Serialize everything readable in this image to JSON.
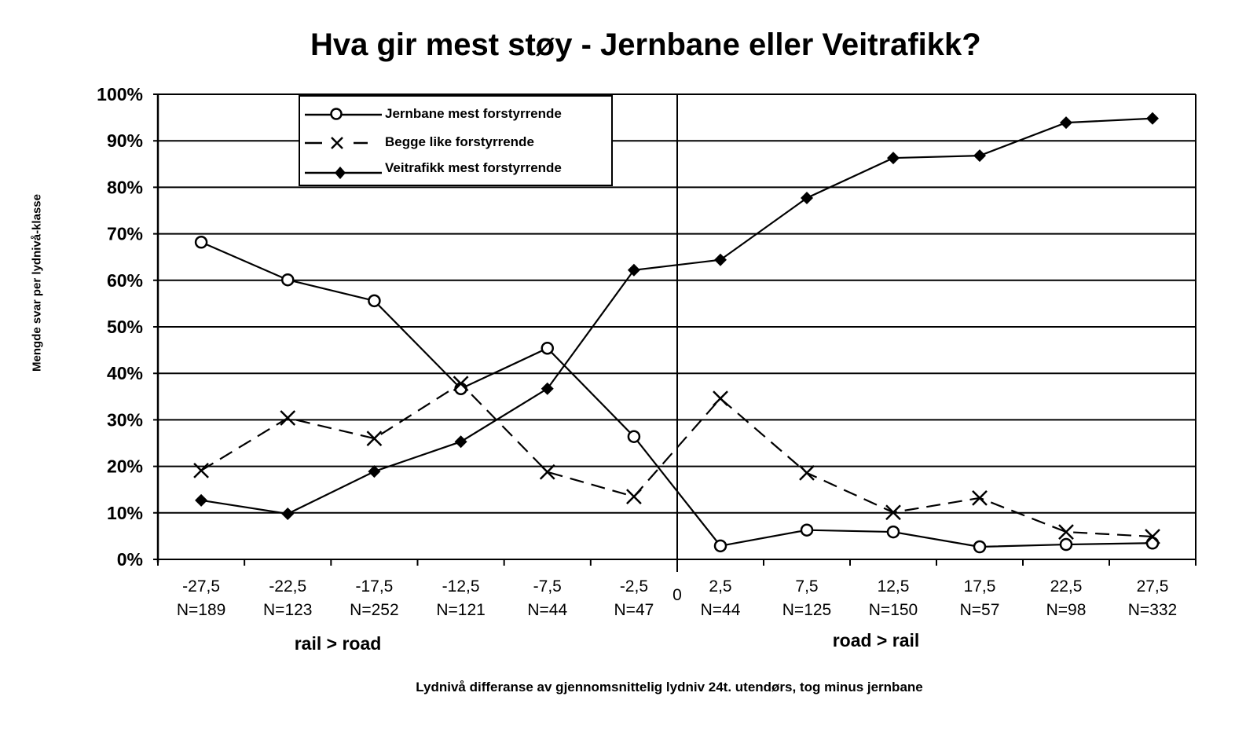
{
  "chart_data": {
    "type": "line",
    "title": "Hva gir mest støy - Jernbane eller Veitrafikk?",
    "xlabel": "Lydnivå differanse av gjennomsnittelig lydniv 24t. utendørs, tog minus jernbane",
    "ylabel": "Mengde svar per lydnivå-klasse",
    "ylim": [
      0,
      100
    ],
    "y_ticks": [
      "0%",
      "10%",
      "20%",
      "30%",
      "40%",
      "50%",
      "60%",
      "70%",
      "80%",
      "90%",
      "100%"
    ],
    "categories": [
      "-27,5",
      "-22,5",
      "-17,5",
      "-12,5",
      "-7,5",
      "-2,5",
      "2,5",
      "7,5",
      "12,5",
      "17,5",
      "22,5",
      "27,5"
    ],
    "n_labels": [
      "N=189",
      "N=123",
      "N=252",
      "N=121",
      "N=44",
      "N=47",
      "N=44",
      "N=125",
      "N=150",
      "N=57",
      "N=98",
      "N=332"
    ],
    "zero_label": "0",
    "region_labels": {
      "left": "rail > road",
      "right": "road > rail"
    },
    "grid": true,
    "legend_position": "top-left inside",
    "series": [
      {
        "name": "Jernbane mest forstyrrende",
        "marker": "open-circle",
        "line": "solid",
        "values": [
          68.2,
          60.1,
          55.6,
          36.7,
          45.4,
          26.4,
          2.9,
          6.3,
          5.9,
          2.7,
          3.2,
          3.5
        ]
      },
      {
        "name": "Begge like forstyrrende",
        "marker": "x",
        "line": "dashed",
        "values": [
          19.1,
          30.4,
          26.0,
          37.8,
          18.8,
          13.5,
          34.6,
          18.6,
          10.1,
          13.2,
          5.9,
          4.9
        ]
      },
      {
        "name": "Veitrafikk mest forstyrrende",
        "marker": "filled-diamond",
        "line": "solid",
        "values": [
          12.7,
          9.8,
          18.9,
          25.3,
          36.7,
          62.2,
          64.4,
          77.7,
          86.3,
          86.8,
          93.9,
          94.8
        ]
      }
    ]
  }
}
